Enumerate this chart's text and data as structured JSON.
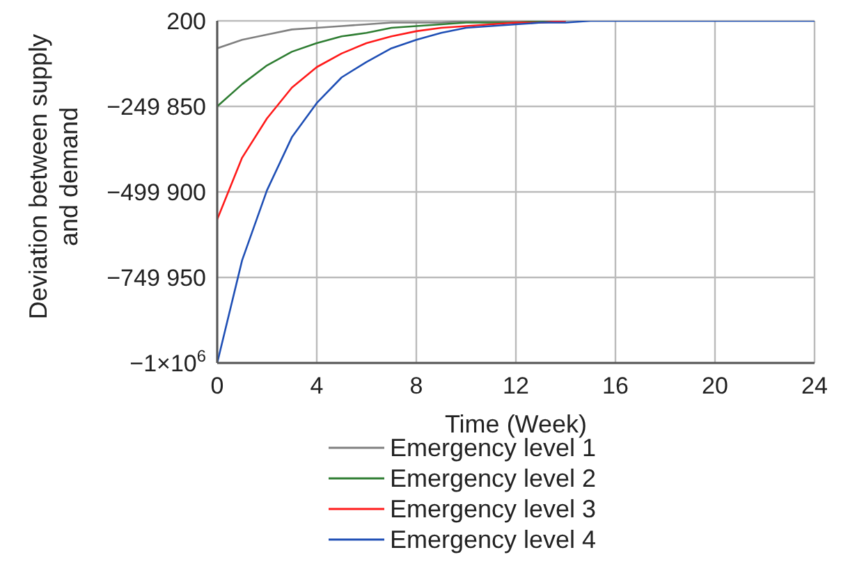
{
  "chart_data": {
    "type": "line",
    "xlabel": "Time (Week)",
    "ylabel": "Deviation between supply and demand",
    "x": [
      0,
      1,
      2,
      3,
      4,
      5,
      6,
      7,
      8,
      9,
      10,
      11,
      12,
      13,
      14,
      15,
      16,
      17,
      18,
      19,
      20,
      21,
      22,
      23,
      24
    ],
    "series": [
      {
        "name": "Emergency level 1",
        "color": "#808080",
        "values": [
          -80000,
          -55000,
          -40000,
          -25000,
          -20000,
          -15000,
          -10000,
          -5000,
          -5000,
          -5000,
          0,
          0,
          0,
          0,
          200,
          null,
          null,
          null,
          null,
          null,
          null,
          null,
          null,
          null,
          null
        ]
      },
      {
        "name": "Emergency level 2",
        "color": "#2e7d32",
        "values": [
          -250000,
          -185000,
          -130000,
          -90000,
          -65000,
          -45000,
          -35000,
          -20000,
          -15000,
          -10000,
          -5000,
          -5000,
          -5000,
          0,
          0,
          null,
          null,
          null,
          null,
          null,
          null,
          null,
          null,
          null,
          null
        ]
      },
      {
        "name": "Emergency level 3",
        "color": "#ff1a1a",
        "values": [
          -580000,
          -400000,
          -285000,
          -195000,
          -135000,
          -95000,
          -65000,
          -45000,
          -30000,
          -20000,
          -15000,
          -10000,
          -5000,
          -5000,
          0,
          null,
          null,
          null,
          null,
          null,
          null,
          null,
          null,
          null,
          null
        ]
      },
      {
        "name": "Emergency level 4",
        "color": "#1f4fb5",
        "values": [
          -1000000,
          -700000,
          -495000,
          -340000,
          -240000,
          -165000,
          -120000,
          -80000,
          -55000,
          -35000,
          -20000,
          -15000,
          -10000,
          -5000,
          -5000,
          200,
          200,
          200,
          200,
          200,
          200,
          200,
          200,
          200,
          200
        ]
      }
    ],
    "xlim": [
      0,
      24
    ],
    "xticks": [
      0,
      4,
      8,
      12,
      16,
      20,
      24
    ],
    "ylim": [
      -1000000,
      200
    ],
    "yticks": [
      200,
      {
        "value": -249850,
        "label": "−249 850"
      },
      {
        "value": -499900,
        "label": "−499 900"
      },
      {
        "value": -749950,
        "label": "−749 950"
      },
      {
        "value": -1000000,
        "label": "−1×10$^{6}$"
      }
    ],
    "grid": true,
    "legend": "bottom",
    "marker": "none",
    "line_style": "solid"
  }
}
